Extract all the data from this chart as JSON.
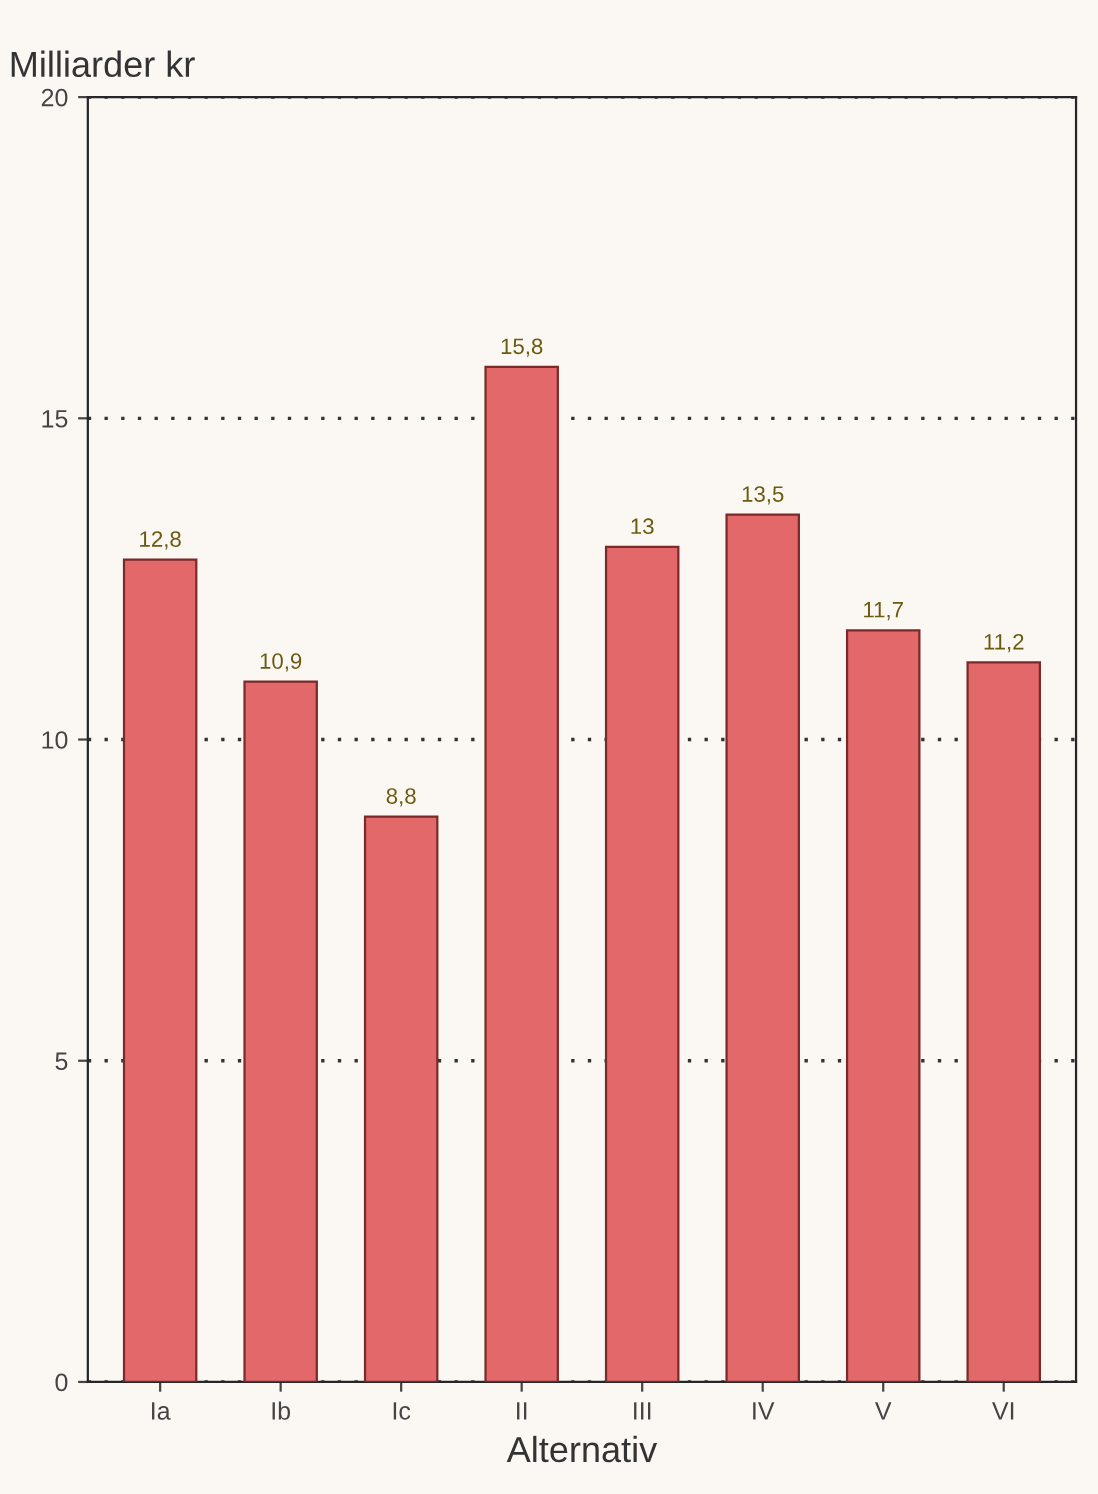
{
  "chart_data": {
    "type": "bar",
    "ylabel": "Milliarder kr",
    "xlabel": "Alternativ",
    "categories": [
      "Ia",
      "Ib",
      "Ic",
      "II",
      "III",
      "IV",
      "V",
      "VI"
    ],
    "values": [
      12.8,
      10.9,
      8.8,
      15.8,
      13,
      13.5,
      11.7,
      11.2
    ],
    "value_labels": [
      "12,8",
      "10,9",
      "8,8",
      "15,8",
      "13",
      "13,5",
      "11,7",
      "11,2"
    ],
    "color": "#e2686a",
    "ylim": [
      0,
      20
    ],
    "yticks": [
      0,
      5,
      10,
      15,
      20
    ],
    "grid": "y"
  }
}
